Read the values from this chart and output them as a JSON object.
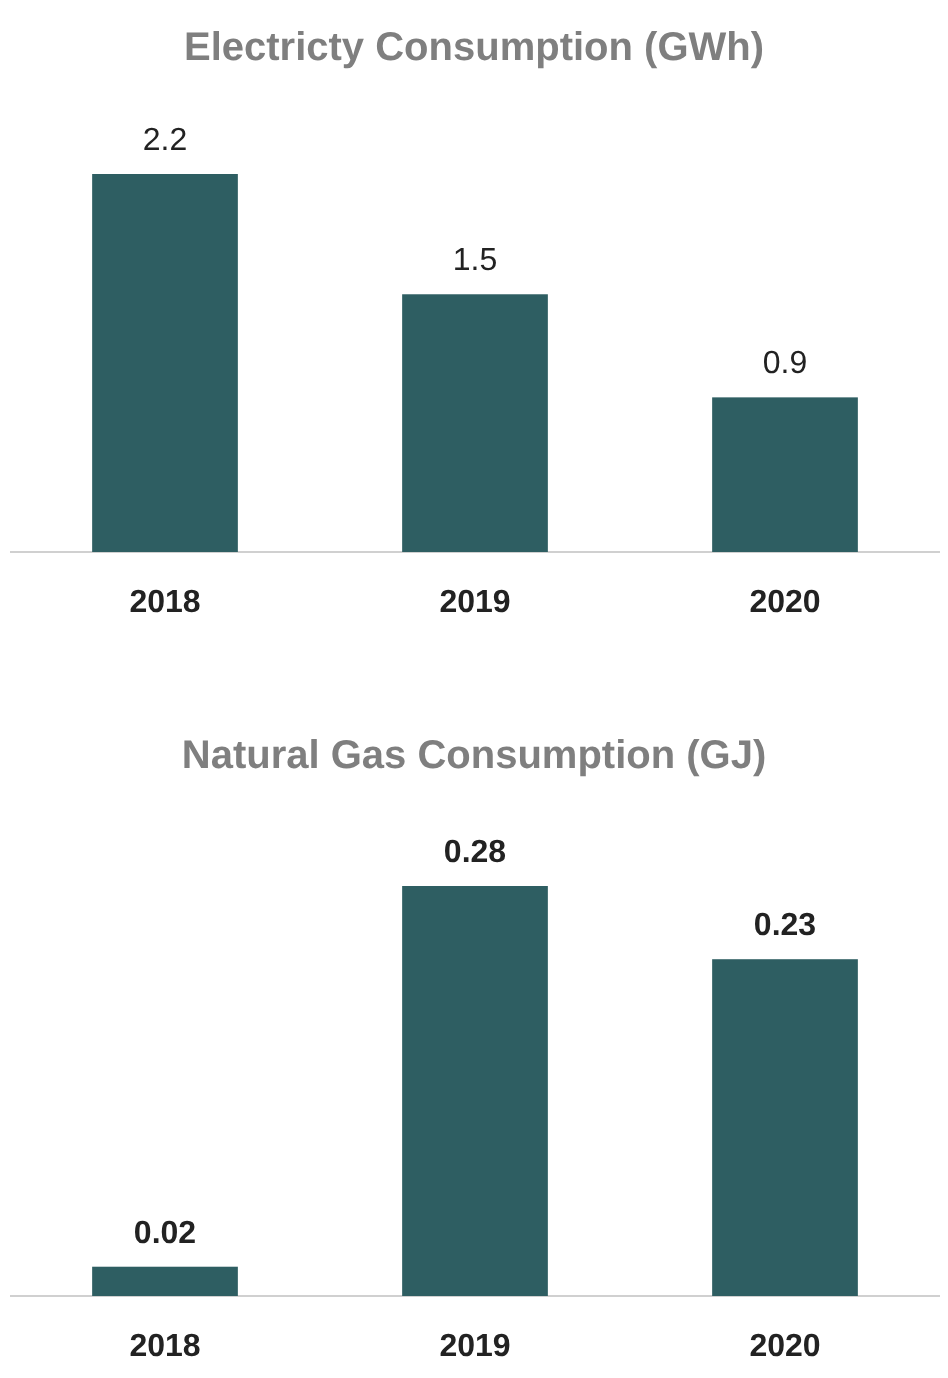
{
  "chart_data": [
    {
      "type": "bar",
      "title": "Electricty Consumption (GWh)",
      "categories": [
        "2018",
        "2019",
        "2020"
      ],
      "values": [
        2.2,
        1.5,
        0.9
      ],
      "color": "#2e5e62",
      "data_labels": true
    },
    {
      "type": "bar",
      "title": "Natural Gas Consumption (GJ)",
      "categories": [
        "2018",
        "2019",
        "2020"
      ],
      "values": [
        0.02,
        0.28,
        0.23
      ],
      "color": "#2e5e62",
      "data_labels": true
    }
  ]
}
